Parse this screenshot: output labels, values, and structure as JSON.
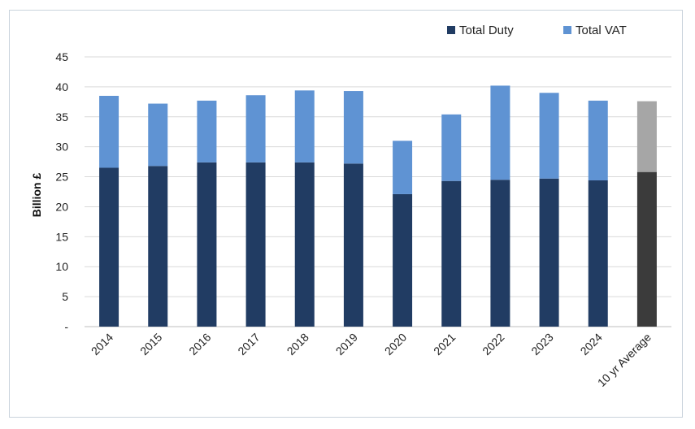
{
  "chart_data": {
    "type": "bar",
    "stacked": true,
    "categories": [
      "2014",
      "2015",
      "2016",
      "2017",
      "2018",
      "2019",
      "2020",
      "2021",
      "2022",
      "2023",
      "2024",
      "10 yr Average"
    ],
    "series": [
      {
        "name": "Total Duty",
        "values": [
          26.5,
          26.8,
          27.4,
          27.4,
          27.4,
          27.2,
          22.1,
          24.3,
          24.5,
          24.7,
          24.4,
          25.8
        ],
        "color": "#213c63"
      },
      {
        "name": "Total VAT",
        "values": [
          12.0,
          10.4,
          10.3,
          11.2,
          12.0,
          12.1,
          8.9,
          11.1,
          15.7,
          14.3,
          13.3,
          11.8
        ],
        "color": "#5f93d3"
      }
    ],
    "highlight_last": {
      "colors": [
        "#3b3b3b",
        "#a6a6a6"
      ]
    },
    "ylabel": "Billion £",
    "xlabel": "",
    "ylim": [
      0,
      45
    ],
    "yticks": [
      0,
      5,
      10,
      15,
      20,
      25,
      30,
      35,
      40,
      45
    ],
    "ytick_labels": [
      "-",
      "5",
      "10",
      "15",
      "20",
      "25",
      "30",
      "35",
      "40",
      "45"
    ],
    "grid": true,
    "legend_position": "top-right"
  }
}
